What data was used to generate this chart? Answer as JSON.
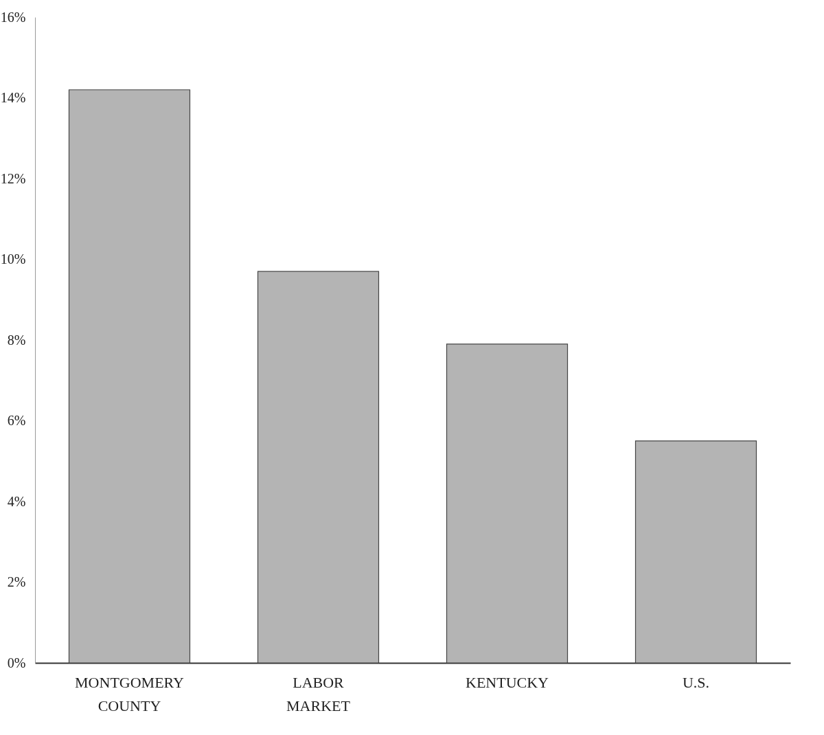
{
  "chart_data": {
    "type": "bar",
    "categories": [
      "MONTGOMERY COUNTY",
      "LABOR MARKET",
      "KENTUCKY",
      "U.S."
    ],
    "values": [
      14.2,
      9.7,
      7.9,
      5.5
    ],
    "color": "#b4b4b4",
    "ylim": [
      0,
      16
    ],
    "yticks": [
      {
        "value": 0,
        "label": "0%"
      },
      {
        "value": 2,
        "label": "2%"
      },
      {
        "value": 4,
        "label": "4%"
      },
      {
        "value": 6,
        "label": "6%"
      },
      {
        "value": 8,
        "label": "8%"
      },
      {
        "value": 10,
        "label": "10%"
      },
      {
        "value": 12,
        "label": "12%"
      },
      {
        "value": 14,
        "label": "14%"
      },
      {
        "value": 16,
        "label": "16%"
      }
    ],
    "grid": false
  }
}
